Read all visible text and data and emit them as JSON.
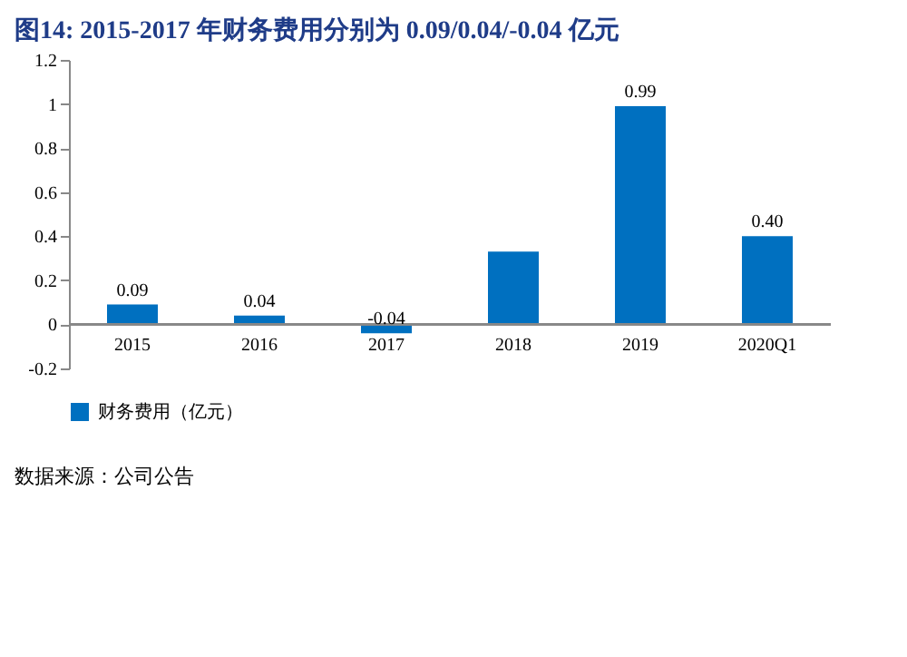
{
  "chart_data": {
    "type": "bar",
    "title": "图14:  2015-2017 年财务费用分别为 0.09/0.04/-0.04 亿元",
    "categories": [
      "2015",
      "2016",
      "2017",
      "2018",
      "2019",
      "2020Q1"
    ],
    "series": [
      {
        "name": "财务费用（亿元）",
        "color": "#0070c0",
        "values": [
          0.09,
          0.04,
          -0.04,
          0.33,
          0.99,
          0.4
        ]
      }
    ],
    "value_labels": [
      "0.09",
      "0.04",
      "-0.04",
      null,
      "0.99",
      "0.40"
    ],
    "ylim": [
      -0.2,
      1.2
    ],
    "yticks": [
      -0.2,
      0,
      0.2,
      0.4,
      0.6,
      0.8,
      1,
      1.2
    ],
    "grid": false,
    "legend": "bottom",
    "annotations": [
      "数据来源：公司公告"
    ]
  }
}
